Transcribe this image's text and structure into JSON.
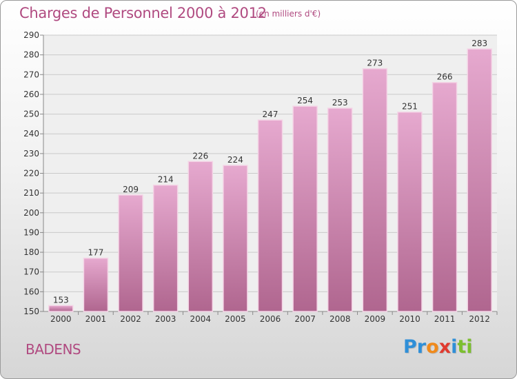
{
  "header": {
    "title": "Charges de Personnel 2000 à 2012",
    "subtitle": "(en milliers d'€)"
  },
  "footer": {
    "town": "BADENS",
    "brand_letters": [
      "P",
      "r",
      "o",
      "x",
      "i",
      "t",
      "i"
    ],
    "brand_colors": [
      "#2f8fd8",
      "#2f8fd8",
      "#f08a1c",
      "#e03a2f",
      "#2f8fd8",
      "#7cbf2f",
      "#7cbf2f"
    ]
  },
  "chart_data": {
    "type": "bar",
    "title": "Charges de Personnel 2000 à 2012",
    "subtitle": "(en milliers d'€)",
    "categories": [
      "2000",
      "2001",
      "2002",
      "2003",
      "2004",
      "2005",
      "2006",
      "2007",
      "2008",
      "2009",
      "2010",
      "2011",
      "2012"
    ],
    "values": [
      153,
      177,
      209,
      214,
      226,
      224,
      247,
      254,
      253,
      273,
      251,
      266,
      283
    ],
    "ylim": [
      150,
      290
    ],
    "yticks": [
      150,
      160,
      170,
      180,
      190,
      200,
      210,
      220,
      230,
      240,
      250,
      260,
      270,
      280,
      290
    ],
    "grid": true,
    "bar_color": "#d78cb8"
  }
}
